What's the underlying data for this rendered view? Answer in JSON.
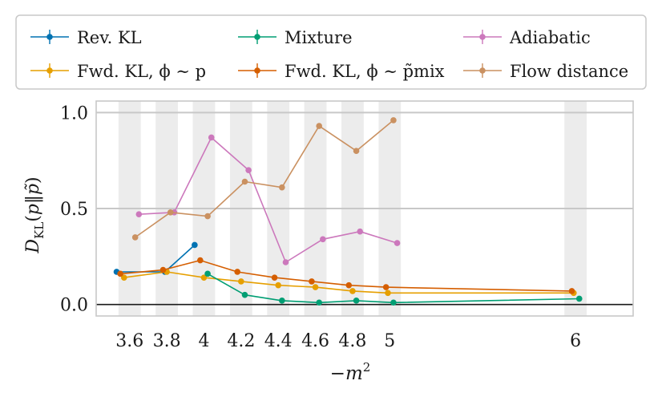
{
  "chart_data": {
    "type": "line",
    "xlabel": "−m²",
    "ylabel": "D_KL(p‖p̃)",
    "ylim": [
      -0.06,
      1.06
    ],
    "xlim": [
      3.42,
      6.31
    ],
    "x_ticks": [
      3.6,
      3.8,
      4.0,
      4.2,
      4.4,
      4.6,
      4.8,
      5.0,
      6.0
    ],
    "x_tick_labels": [
      "3.6",
      "3.8",
      "4",
      "4.2",
      "4.4",
      "4.6",
      "4.8",
      "5",
      "6"
    ],
    "y_ticks": [
      0.0,
      0.5,
      1.0
    ],
    "y_tick_labels": [
      "0.0",
      "0.5",
      "1.0"
    ],
    "grid": true,
    "legend_position": "top",
    "series": [
      {
        "name": "Rev. KL",
        "color": "#0072b2",
        "x": [
          3.53,
          3.79,
          3.95
        ],
        "y": [
          0.17,
          0.17,
          0.31
        ]
      },
      {
        "name": "Fwd. KL, ϕ ∼ p",
        "color": "#e69f00",
        "x": [
          3.57,
          3.8,
          4.0,
          4.2,
          4.4,
          4.6,
          4.8,
          4.99,
          5.99
        ],
        "y": [
          0.14,
          0.17,
          0.14,
          0.12,
          0.1,
          0.09,
          0.07,
          0.06,
          0.06
        ]
      },
      {
        "name": "Mixture",
        "color": "#009e73",
        "x": [
          4.02,
          4.22,
          4.42,
          4.62,
          4.82,
          5.02,
          6.02
        ],
        "y": [
          0.16,
          0.05,
          0.02,
          0.01,
          0.02,
          0.01,
          0.03
        ]
      },
      {
        "name": "Fwd. KL, ϕ ∼ p̃mix",
        "color": "#d55e00",
        "x": [
          3.55,
          3.78,
          3.98,
          4.18,
          4.38,
          4.58,
          4.78,
          4.98,
          5.98
        ],
        "y": [
          0.16,
          0.18,
          0.23,
          0.17,
          0.14,
          0.12,
          0.1,
          0.09,
          0.07
        ]
      },
      {
        "name": "Adiabatic",
        "color": "#cc78bc",
        "x": [
          3.65,
          3.84,
          4.04,
          4.24,
          4.44,
          4.64,
          4.84,
          5.04
        ],
        "y": [
          0.47,
          0.48,
          0.87,
          0.7,
          0.22,
          0.34,
          0.38,
          0.32
        ]
      },
      {
        "name": "Flow distance",
        "color": "#ca9161",
        "x": [
          3.63,
          3.82,
          4.02,
          4.22,
          4.42,
          4.62,
          4.82,
          5.02
        ],
        "y": [
          0.35,
          0.48,
          0.46,
          0.64,
          0.61,
          0.93,
          0.8,
          0.96
        ]
      }
    ],
    "shaded_bands": [
      [
        3.54,
        3.66
      ],
      [
        3.74,
        3.86
      ],
      [
        3.94,
        4.06
      ],
      [
        4.14,
        4.26
      ],
      [
        4.34,
        4.46
      ],
      [
        4.54,
        4.66
      ],
      [
        4.74,
        4.86
      ],
      [
        4.94,
        5.06
      ],
      [
        5.94,
        6.06
      ]
    ],
    "legend": {
      "entries": [
        {
          "series": "Rev. KL",
          "label": "Rev. KL"
        },
        {
          "series": "Mixture",
          "label": "Mixture"
        },
        {
          "series": "Adiabatic",
          "label": "Adiabatic"
        },
        {
          "series": "Fwd. KL, ϕ ∼ p",
          "label": "Fwd. KL, ϕ ∼ p"
        },
        {
          "series": "Fwd. KL, ϕ ∼ p̃mix",
          "label": "Fwd. KL, ϕ ∼ p̃mix"
        },
        {
          "series": "Flow distance",
          "label": "Flow distance"
        }
      ]
    }
  }
}
